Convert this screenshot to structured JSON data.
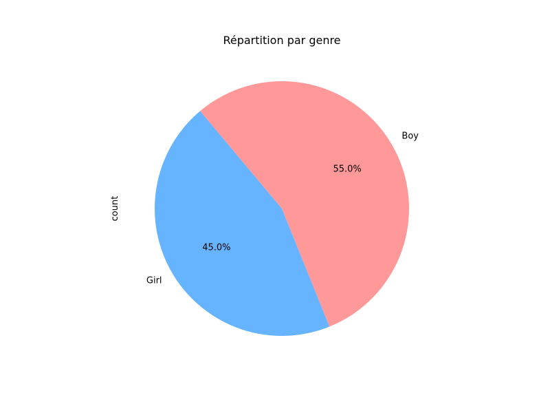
{
  "chart_data": {
    "type": "pie",
    "title": "Répartition par genre",
    "ylabel": "count",
    "slices": [
      {
        "label": "Girl",
        "value": 45.0,
        "percent_label": "45.0%",
        "color": "#66b3ff"
      },
      {
        "label": "Boy",
        "value": 55.0,
        "percent_label": "55.0%",
        "color": "#ff9999"
      }
    ],
    "legend": "none"
  }
}
